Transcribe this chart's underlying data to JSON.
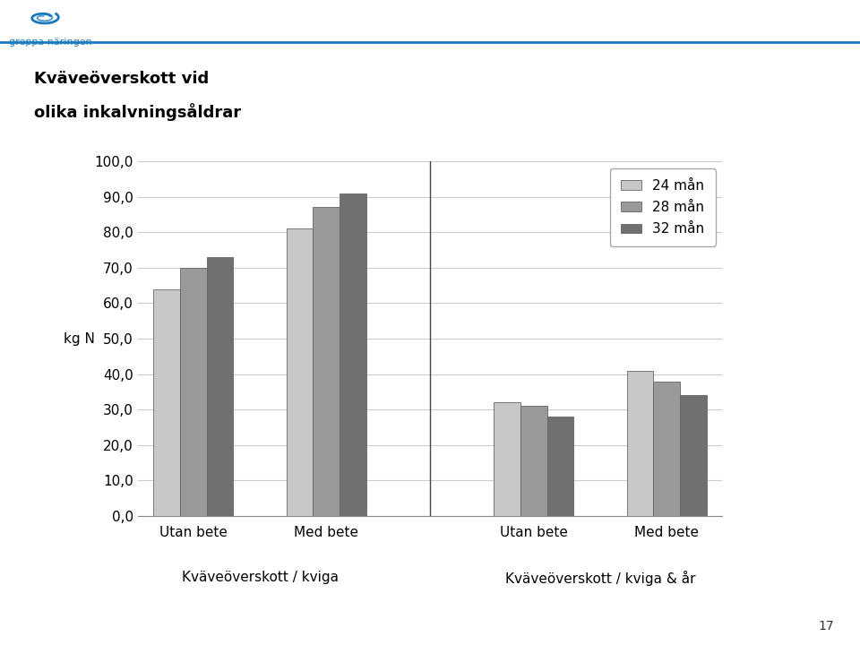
{
  "title_line1": "Kväveöverskott vid",
  "title_line2": "olika inkalvningsåldrar",
  "ylabel": "kg N",
  "groups": [
    "Utan bete",
    "Med bete",
    "Utan bete",
    "Med bete"
  ],
  "group_labels_bottom": [
    "Kväveöverskott / kviga",
    "Kväveöverskott / kviga & år"
  ],
  "series": [
    "24 mån",
    "28 mån",
    "32 mån"
  ],
  "colors": [
    "#c8c8c8",
    "#999999",
    "#707070"
  ],
  "values": [
    [
      64.0,
      70.0,
      73.0
    ],
    [
      81.0,
      87.0,
      91.0
    ],
    [
      32.0,
      31.0,
      28.0
    ],
    [
      41.0,
      38.0,
      34.0
    ]
  ],
  "ylim": [
    0,
    100
  ],
  "yticks": [
    0,
    10,
    20,
    30,
    40,
    50,
    60,
    70,
    80,
    90,
    100
  ],
  "ytick_labels": [
    "0,0",
    "10,0",
    "20,0",
    "30,0",
    "40,0",
    "50,0",
    "60,0",
    "70,0",
    "80,0",
    "90,0",
    "100,0"
  ],
  "background_color": "#ffffff",
  "plot_bg_color": "#ffffff",
  "grid_color": "#cccccc",
  "page_number": "17",
  "logo_color": "#1a7abf",
  "header_line_color": "#1a7abf"
}
